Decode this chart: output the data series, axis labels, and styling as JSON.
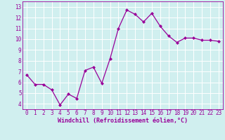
{
  "x": [
    0,
    1,
    2,
    3,
    4,
    5,
    6,
    7,
    8,
    9,
    10,
    11,
    12,
    13,
    14,
    15,
    16,
    17,
    18,
    19,
    20,
    21,
    22,
    23
  ],
  "y": [
    6.7,
    5.8,
    5.8,
    5.3,
    3.9,
    4.9,
    4.5,
    7.1,
    7.4,
    5.9,
    8.2,
    11.0,
    12.7,
    12.3,
    11.6,
    12.4,
    11.2,
    10.3,
    9.7,
    10.1,
    10.1,
    9.9,
    9.9,
    9.8
  ],
  "xlabel": "Windchill (Refroidissement éolien,°C)",
  "ylim": [
    3.5,
    13.5
  ],
  "xlim": [
    -0.5,
    23.5
  ],
  "yticks": [
    4,
    5,
    6,
    7,
    8,
    9,
    10,
    11,
    12,
    13
  ],
  "xticks": [
    0,
    1,
    2,
    3,
    4,
    5,
    6,
    7,
    8,
    9,
    10,
    11,
    12,
    13,
    14,
    15,
    16,
    17,
    18,
    19,
    20,
    21,
    22,
    23
  ],
  "line_color": "#990099",
  "marker": "D",
  "marker_size": 2.0,
  "bg_color": "#d0efef",
  "grid_color": "#ffffff",
  "tick_color": "#990099",
  "label_color": "#990099",
  "font_family": "monospace",
  "tick_fontsize": 5.5,
  "xlabel_fontsize": 6.0
}
